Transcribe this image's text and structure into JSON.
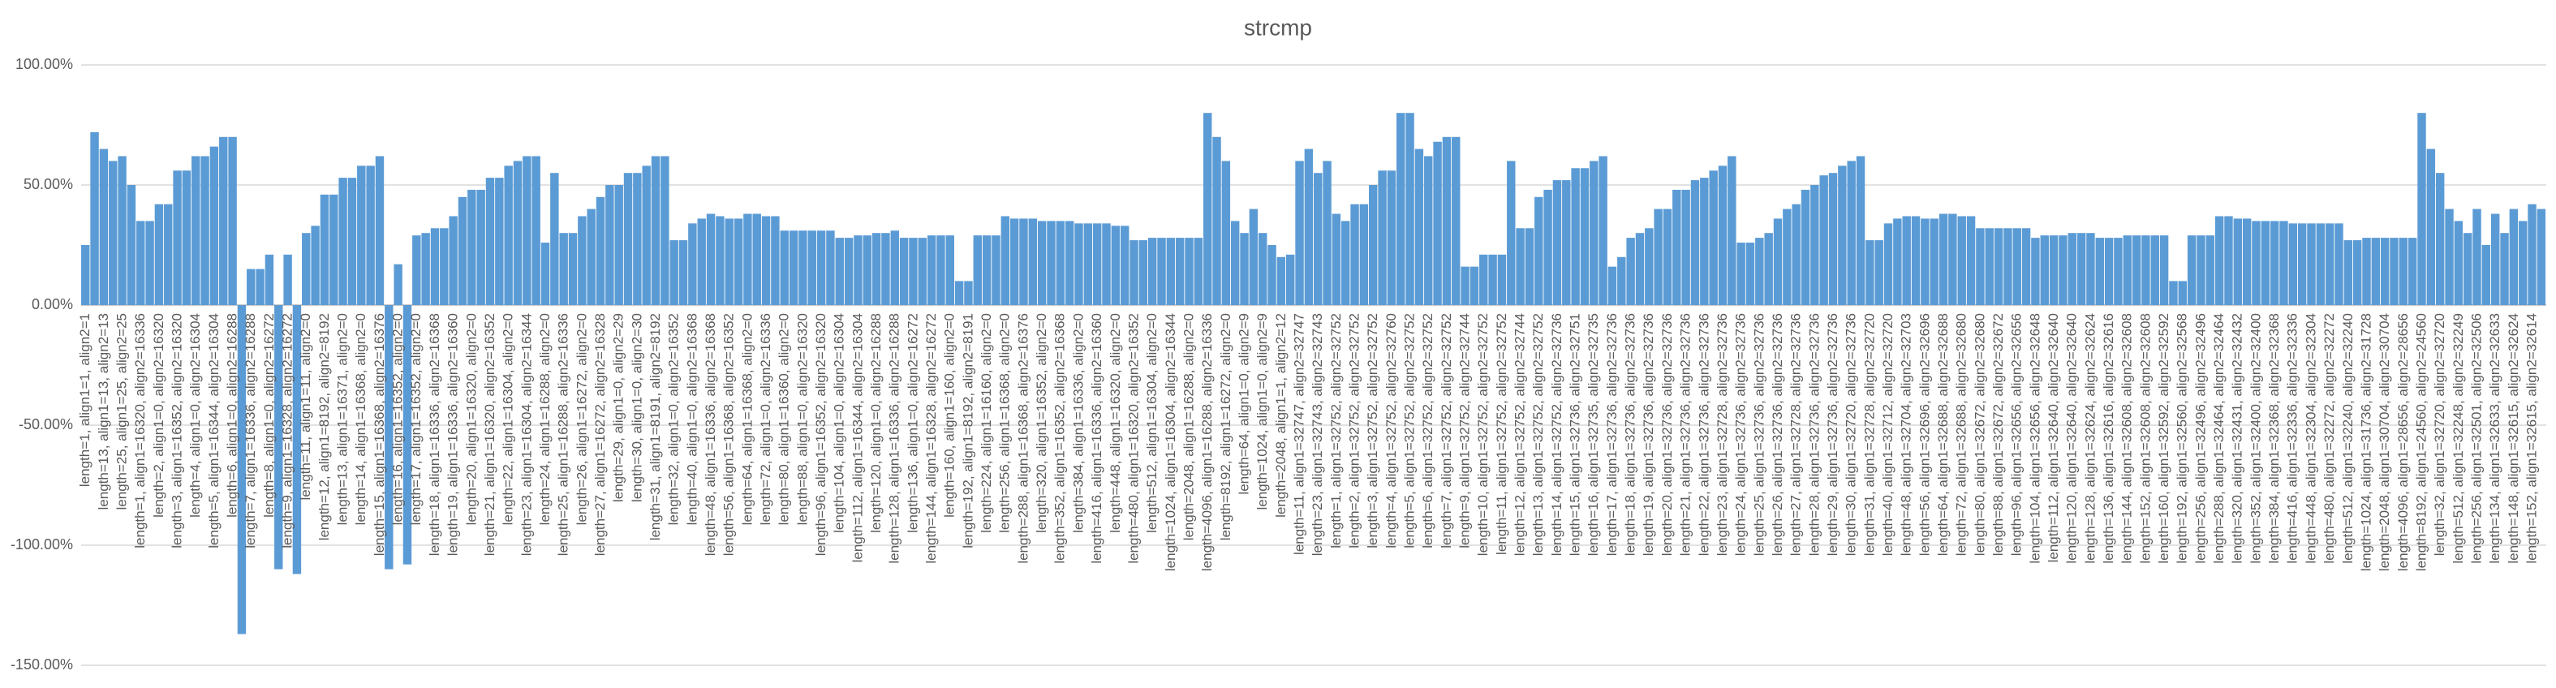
{
  "chart_data": {
    "type": "bar",
    "title": "strcmp",
    "color": "#5b9bd5",
    "grid": true,
    "ylim": [
      -150,
      100
    ],
    "yticks": [
      {
        "value": -150,
        "label": "-150.00%"
      },
      {
        "value": -100,
        "label": "-100.00%"
      },
      {
        "value": -50,
        "label": "-50.00%"
      },
      {
        "value": 0,
        "label": "0.00%"
      },
      {
        "value": 50,
        "label": "50.00%"
      },
      {
        "value": 100,
        "label": "100.00%"
      }
    ],
    "categories": [
      "length=1, align1=1, align2=1",
      null,
      "length=13, align1=13, align2=13",
      null,
      "length=25, align1=25, align2=25",
      null,
      "length=1, align1=16320, align2=16336",
      null,
      "length=2, align1=0, align2=16320",
      null,
      "length=3, align1=16352, align2=16320",
      null,
      "length=4, align1=0, align2=16304",
      null,
      "length=5, align1=16344, align2=16304",
      null,
      "length=6, align1=0, align2=16288",
      null,
      "length=7, align1=16336, align2=16288",
      null,
      "length=8, align1=0, align2=16272",
      null,
      "length=9, align1=16328, align2=16272",
      null,
      "length=11, align1=11, align2=0",
      null,
      "length=12, align1=8192, align2=8192",
      null,
      "length=13, align1=16371, align2=0",
      null,
      "length=14, align1=16368, align2=0",
      null,
      "length=15, align1=16368, align2=16376",
      null,
      "length=16, align1=16352, align2=0",
      null,
      "length=17, align1=16352, align2=0",
      null,
      "length=18, align1=16336, align2=16368",
      null,
      "length=19, align1=16336, align2=16360",
      null,
      "length=20, align1=16320, align2=0",
      null,
      "length=21, align1=16320, align2=16352",
      null,
      "length=22, align1=16304, align2=0",
      null,
      "length=23, align1=16304, align2=16344",
      null,
      "length=24, align1=16288, align2=0",
      null,
      "length=25, align1=16288, align2=16336",
      null,
      "length=26, align1=16272, align2=0",
      null,
      "length=27, align1=16272, align2=16328",
      null,
      "length=29, align1=0, align2=29",
      null,
      "length=30, align1=0, align2=30",
      null,
      "length=31, align1=8191, align2=8192",
      null,
      "length=32, align1=0, align2=16352",
      null,
      "length=40, align1=0, align2=16368",
      null,
      "length=48, align1=16336, align2=16368",
      null,
      "length=56, align1=16368, align2=16352",
      null,
      "length=64, align1=16368, align2=0",
      null,
      "length=72, align1=0, align2=16336",
      null,
      "length=80, align1=16360, align2=0",
      null,
      "length=88, align1=0, align2=16320",
      null,
      "length=96, align1=16352, align2=16320",
      null,
      "length=104, align1=0, align2=16304",
      null,
      "length=112, align1=16344, align2=16304",
      null,
      "length=120, align1=0, align2=16288",
      null,
      "length=128, align1=16336, align2=16288",
      null,
      "length=136, align1=0, align2=16272",
      null,
      "length=144, align1=16328, align2=16272",
      null,
      "length=160, align1=160, align2=0",
      null,
      "length=192, align1=8192, align2=8191",
      null,
      "length=224, align1=16160, align2=0",
      null,
      "length=256, align1=16368, align2=0",
      null,
      "length=288, align1=16368, align2=16376",
      null,
      "length=320, align1=16352, align2=0",
      null,
      "length=352, align1=16352, align2=16368",
      null,
      "length=384, align1=16336, align2=0",
      null,
      "length=416, align1=16336, align2=16360",
      null,
      "length=448, align1=16320, align2=0",
      null,
      "length=480, align1=16320, align2=16352",
      null,
      "length=512, align1=16304, align2=0",
      null,
      "length=1024, align1=16304, align2=16344",
      null,
      "length=2048, align1=16288, align2=0",
      null,
      "length=4096, align1=16288, align2=16336",
      null,
      "length=8192, align1=16272, align2=0",
      null,
      "length=64, align1=0, align2=9",
      null,
      "length=1024, align1=0, align2=9",
      null,
      "length=2048, align1=1, align2=12",
      null,
      "length=11, align1=32747, align2=32747",
      null,
      "length=23, align1=32743, align2=32743",
      null,
      "length=1, align1=32752, align2=32752",
      null,
      "length=2, align1=32752, align2=32752",
      null,
      "length=3, align1=32752, align2=32752",
      null,
      "length=4, align1=32752, align2=32760",
      null,
      "length=5, align1=32752, align2=32752",
      null,
      "length=6, align1=32752, align2=32752",
      null,
      "length=7, align1=32752, align2=32752",
      null,
      "length=9, align1=32752, align2=32744",
      null,
      "length=10, align1=32752, align2=32752",
      null,
      "length=11, align1=32752, align2=32752",
      null,
      "length=12, align1=32752, align2=32744",
      null,
      "length=13, align1=32752, align2=32752",
      null,
      "length=14, align1=32752, align2=32736",
      null,
      "length=15, align1=32736, align2=32751",
      null,
      "length=16, align1=32735, align2=32735",
      null,
      "length=17, align1=32736, align2=32736",
      null,
      "length=18, align1=32736, align2=32736",
      null,
      "length=19, align1=32736, align2=32736",
      null,
      "length=20, align1=32736, align2=32736",
      null,
      "length=21, align1=32736, align2=32736",
      null,
      "length=22, align1=32736, align2=32736",
      null,
      "length=23, align1=32728, align2=32736",
      null,
      "length=24, align1=32736, align2=32736",
      null,
      "length=25, align1=32736, align2=32736",
      null,
      "length=26, align1=32736, align2=32736",
      null,
      "length=27, align1=32728, align2=32736",
      null,
      "length=28, align1=32736, align2=32736",
      null,
      "length=29, align1=32736, align2=32736",
      null,
      "length=30, align1=32720, align2=32736",
      null,
      "length=31, align1=32728, align2=32720",
      null,
      "length=40, align1=32712, align2=32720",
      null,
      "length=48, align1=32704, align2=32703",
      null,
      "length=56, align1=32696, align2=32696",
      null,
      "length=64, align1=32688, align2=32688",
      null,
      "length=72, align1=32688, align2=32680",
      null,
      "length=80, align1=32672, align2=32680",
      null,
      "length=88, align1=32672, align2=32672",
      null,
      "length=96, align1=32656, align2=32656",
      null,
      "length=104, align1=32656, align2=32648",
      null,
      "length=112, align1=32640, align2=32640",
      null,
      "length=120, align1=32640, align2=32640",
      null,
      "length=128, align1=32624, align2=32624",
      null,
      "length=136, align1=32616, align2=32616",
      null,
      "length=144, align1=32608, align2=32608",
      null,
      "length=152, align1=32608, align2=32608",
      null,
      "length=160, align1=32592, align2=32592",
      null,
      "length=192, align1=32560, align2=32568",
      null,
      "length=256, align1=32496, align2=32496",
      null,
      "length=288, align1=32464, align2=32464",
      null,
      "length=320, align1=32431, align2=32432",
      null,
      "length=352, align1=32400, align2=32400",
      null,
      "length=384, align1=32368, align2=32368",
      null,
      "length=416, align1=32336, align2=32336",
      null,
      "length=448, align1=32304, align2=32304",
      null,
      "length=480, align1=32272, align2=32272",
      null,
      "length=512, align1=32240, align2=32240",
      null,
      "length=1024, align1=31736, align2=31728",
      null,
      "length=2048, align1=30704, align2=30704",
      null,
      "length=4096, align1=28656, align2=28656",
      null,
      "length=8192, align1=24560, align2=24560",
      null,
      "length=32, align1=32720, align2=32720",
      null,
      "length=512, align1=32248, align2=32249",
      null,
      "length=256, align1=32501, align2=32506",
      null,
      "length=134, align1=32633, align2=32633",
      null,
      "length=148, align1=32615, align2=32624",
      null,
      "length=152, align1=32615, align2=32614",
      null
    ],
    "values": [
      25,
      72,
      65,
      60,
      62,
      50,
      35,
      35,
      42,
      42,
      56,
      56,
      62,
      62,
      66,
      70,
      70,
      -137,
      15,
      15,
      21,
      -110,
      21,
      -112,
      30,
      33,
      46,
      46,
      53,
      53,
      58,
      58,
      62,
      -110,
      17,
      -108,
      29,
      30,
      32,
      32,
      37,
      45,
      48,
      48,
      53,
      53,
      58,
      60,
      62,
      62,
      26,
      55,
      30,
      30,
      37,
      40,
      45,
      50,
      50,
      55,
      55,
      58,
      62,
      62,
      27,
      27,
      34,
      36,
      38,
      37,
      36,
      36,
      38,
      38,
      37,
      37,
      31,
      31,
      31,
      31,
      31,
      31,
      28,
      28,
      29,
      29,
      30,
      30,
      31,
      28,
      28,
      28,
      29,
      29,
      29,
      10,
      10,
      29,
      29,
      29,
      37,
      36,
      36,
      36,
      35,
      35,
      35,
      35,
      34,
      34,
      34,
      34,
      33,
      33,
      27,
      27,
      28,
      28,
      28,
      28,
      28,
      28,
      80,
      70,
      60,
      35,
      30,
      40,
      30,
      25,
      20,
      21,
      60,
      65,
      55,
      60,
      38,
      35,
      42,
      42,
      50,
      56,
      56,
      80,
      80,
      65,
      62,
      68,
      70,
      70,
      16,
      16,
      21,
      21,
      21,
      60,
      32,
      32,
      45,
      48,
      52,
      52,
      57,
      57,
      60,
      62,
      16,
      20,
      28,
      30,
      32,
      40,
      40,
      48,
      48,
      52,
      53,
      56,
      58,
      62,
      26,
      26,
      28,
      30,
      36,
      40,
      42,
      48,
      50,
      54,
      55,
      58,
      60,
      62,
      27,
      27,
      34,
      36,
      37,
      37,
      36,
      36,
      38,
      38,
      37,
      37,
      32,
      32,
      32,
      32,
      32,
      32,
      28,
      29,
      29,
      29,
      30,
      30,
      30,
      28,
      28,
      28,
      29,
      29,
      29,
      29,
      29,
      10,
      10,
      29,
      29,
      29,
      37,
      37,
      36,
      36,
      35,
      35,
      35,
      35,
      34,
      34,
      34,
      34,
      34,
      34,
      27,
      27,
      28,
      28,
      28,
      28,
      28,
      28,
      80,
      65,
      55,
      40,
      35,
      30,
      40,
      25,
      38,
      30,
      40,
      35,
      42,
      40
    ]
  }
}
